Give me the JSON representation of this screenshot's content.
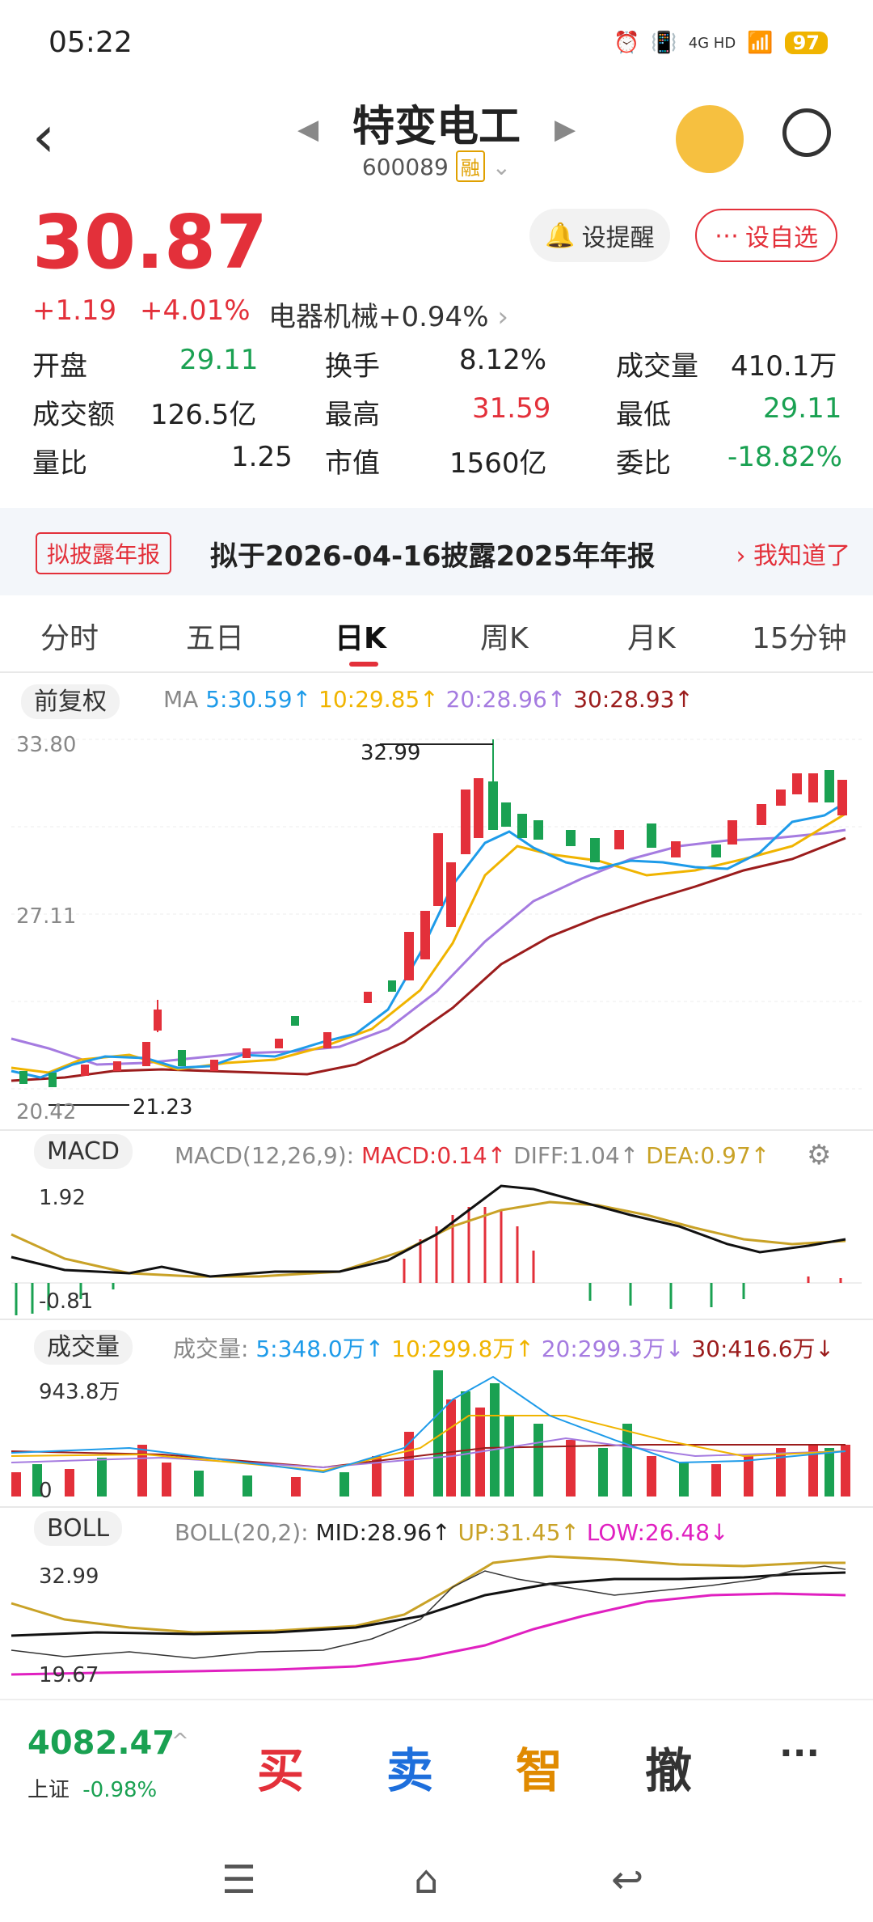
{
  "status": {
    "time": "05:22",
    "battery": "97",
    "network": "4G HD"
  },
  "stock": {
    "name": "特变电工",
    "code": "600089",
    "tag": "融",
    "price": "30.87",
    "change": "+1.19",
    "change_pct": "+4.01%",
    "sector": "电器机械",
    "sector_pct": "+0.94%",
    "remind_label": "设提醒",
    "watch_label": "设自选"
  },
  "stats": {
    "open_label": "开盘",
    "open": "29.11",
    "turnover_label": "换手",
    "turnover": "8.12%",
    "volume_label": "成交量",
    "volume": "410.1万",
    "amount_label": "成交额",
    "amount": "126.5亿",
    "high_label": "最高",
    "high": "31.59",
    "low_label": "最低",
    "low": "29.11",
    "vol_ratio_label": "量比",
    "vol_ratio": "1.25",
    "mktcap_label": "市值",
    "mktcap": "1560亿",
    "bid_ratio_label": "委比",
    "bid_ratio": "-18.82%"
  },
  "notice": {
    "tag": "拟披露年报",
    "text": "拟于2026-04-16披露2025年年报",
    "dismiss": "我知道了"
  },
  "tabs": [
    "分时",
    "五日",
    "日K",
    "周K",
    "月K",
    "15分钟"
  ],
  "kline": {
    "adj_label": "前复权",
    "ma_title": "MA",
    "ma5": "5:30.59↑",
    "ma10": "10:29.85↑",
    "ma20": "20:28.96↑",
    "ma30": "30:28.93↑",
    "ytop": "33.80",
    "ymid": "27.11",
    "ybot": "20.42",
    "high_mark": "32.99",
    "low_mark": "21.23"
  },
  "macd": {
    "pill": "MACD",
    "title": "MACD(12,26,9):",
    "macd": "MACD:0.14↑",
    "diff": "DIFF:1.04↑",
    "dea": "DEA:0.97↑",
    "ytop": "1.92",
    "ybot": "-0.81"
  },
  "volume": {
    "pill": "成交量",
    "title": "成交量:",
    "v5": "5:348.0万↑",
    "v10": "10:299.8万↑",
    "v20": "20:299.3万↓",
    "v30": "30:416.6万↓",
    "ytop": "943.8万",
    "ybot": "0"
  },
  "boll": {
    "pill": "BOLL",
    "title": "BOLL(20,2):",
    "mid": "MID:28.96↑",
    "up": "UP:31.45↑",
    "low": "LOW:26.48↓",
    "ytop": "32.99",
    "ybot": "19.67"
  },
  "index": {
    "value": "4082.47",
    "name": "上证",
    "pct": "-0.98%"
  },
  "actions": [
    "买",
    "卖",
    "智",
    "撤"
  ],
  "colors": {
    "up": "#e3303a",
    "down": "#1aa152",
    "ma5": "#1e9be9",
    "ma10": "#f0b400",
    "ma20": "#a57be0",
    "ma30": "#9b1c1c"
  }
}
